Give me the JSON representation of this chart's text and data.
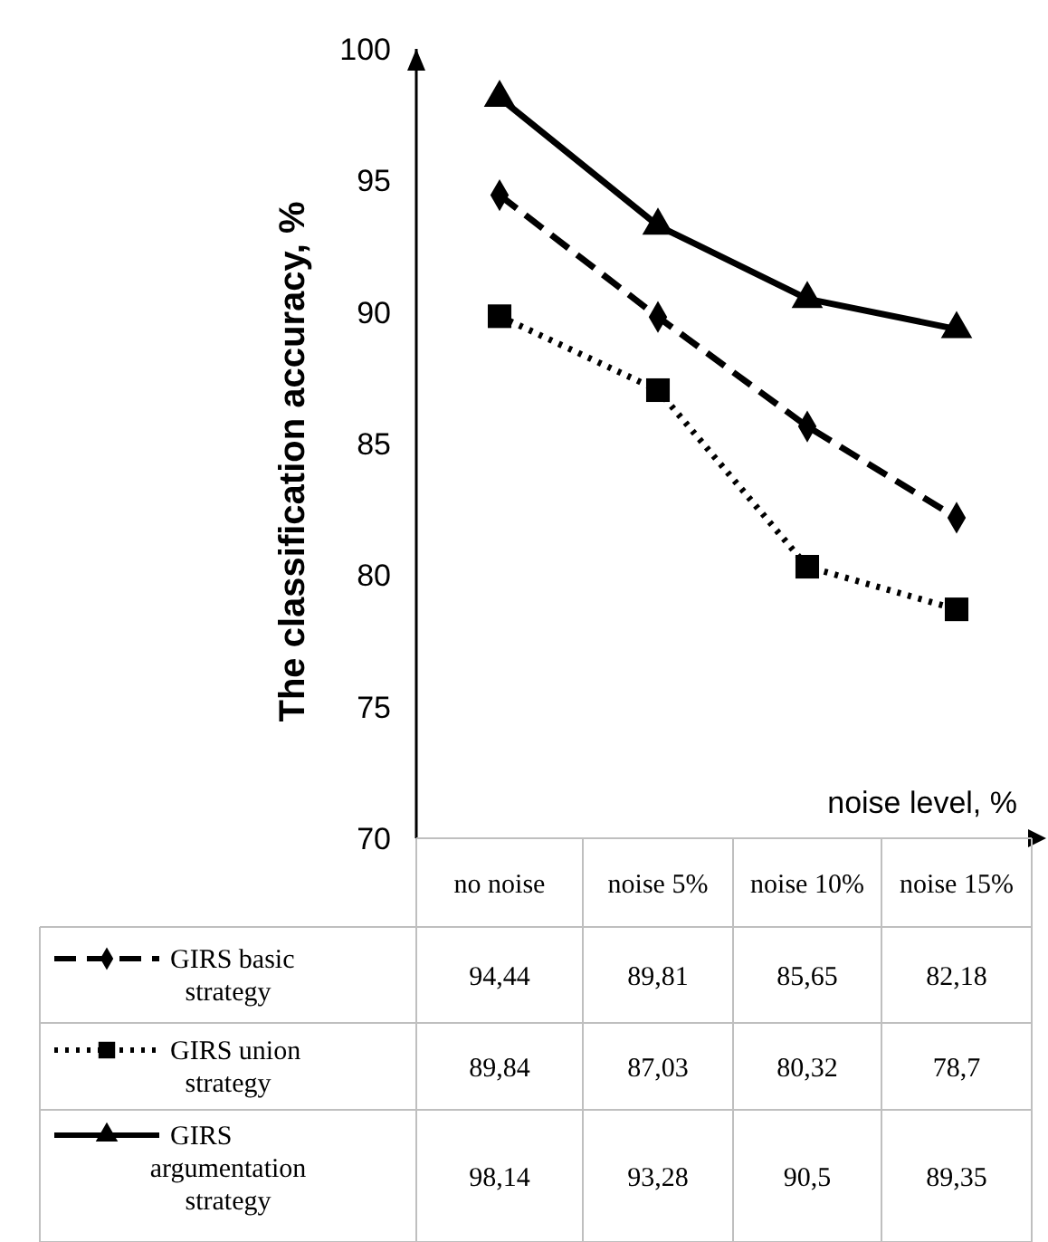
{
  "chart_data": {
    "type": "line",
    "ylabel": "The classification accuracy, %",
    "xlabel": "noise level, %",
    "categories": [
      "no noise",
      "noise 5%",
      "noise 10%",
      "noise 15%"
    ],
    "ylim": [
      70,
      100
    ],
    "yticks": [
      70,
      75,
      80,
      85,
      90,
      95,
      100
    ],
    "grid": false,
    "legend": "bottom",
    "series": [
      {
        "name": "GIRS basic strategy",
        "color": "#000000",
        "marker": "diamond",
        "line_style": "dashed",
        "values": [
          94.44,
          89.81,
          85.65,
          82.18
        ],
        "value_labels": [
          "94,44",
          "89,81",
          "85,65",
          "82,18"
        ]
      },
      {
        "name": "GIRS union strategy",
        "color": "#000000",
        "marker": "square",
        "line_style": "dotted",
        "values": [
          89.84,
          87.03,
          80.32,
          78.7
        ],
        "value_labels": [
          "89,84",
          "87,03",
          "80,32",
          "78,7"
        ]
      },
      {
        "name": "GIRS argumentation strategy",
        "color": "#000000",
        "marker": "triangle",
        "line_style": "solid",
        "values": [
          98.14,
          93.28,
          90.5,
          89.35
        ],
        "value_labels": [
          "98,14",
          "93,28",
          "90,5",
          "89,35"
        ]
      }
    ]
  }
}
